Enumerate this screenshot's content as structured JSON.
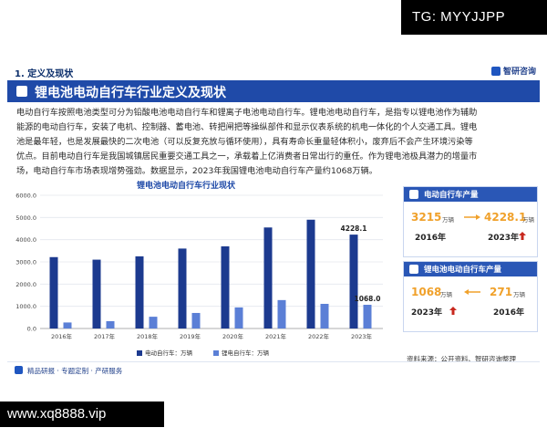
{
  "watermarks": {
    "top_right": "TG: MYYJJPP",
    "bottom_left": "www.xq8888.vip"
  },
  "section": {
    "label": "1. 定义及现状",
    "logo": "智研咨询"
  },
  "title": "锂电池电动自行车行业定义及现状",
  "body_lines": [
    "电动自行车按照电池类型可分为铅酸电池电动自行车和锂离子电池电动自行车。锂电池电动自行车，是指专以锂电池作为辅助",
    "能源的电动自行车，安装了电机、控制器、蓄电池、转把闸把等操纵部件和显示仪表系统的机电一体化的个人交通工具。锂电",
    "池是最年轻，也是发展最快的二次电池（可以反复充放与循环使用），具有寿命长重量轻体积小，废弃后不会产生环境污染等",
    "优点。目前电动自行车是我国城镇居民重要交通工具之一，承载着上亿消费者日常出行的重任。作为锂电池极具潜力的增量市",
    "场，电动自行车市场表现增势强劲。数据显示，2023年我国锂电池电动自行车产量约1068万辆。"
  ],
  "chart_data": {
    "type": "bar",
    "title": "锂电池电动自行车行业现状",
    "categories": [
      "2016年",
      "2017年",
      "2018年",
      "2019年",
      "2020年",
      "2021年",
      "2022年",
      "2023年"
    ],
    "series": [
      {
        "name": "电动自行车：万辆",
        "color": "#1c3a8f",
        "values": [
          3215,
          3100,
          3250,
          3600,
          3700,
          4550,
          4900,
          4228.1
        ]
      },
      {
        "name": "锂电自行车：万辆",
        "color": "#5b7fd6",
        "values": [
          271,
          330,
          530,
          700,
          950,
          1280,
          1110,
          1068.0
        ]
      }
    ],
    "data_labels": {
      "电动自行车：万辆": {
        "2023年": "4228.1"
      },
      "锂电自行车：万辆": {
        "2023年": "1068.0"
      }
    },
    "yticks": [
      "0.0",
      "1000.0",
      "2000.0",
      "3000.0",
      "4000.0",
      "5000.0",
      "6000.0"
    ],
    "ylim": [
      0,
      6000
    ],
    "grid": true,
    "legend": "bottom"
  },
  "cards": [
    {
      "title": "电动自行车产量",
      "left_value": "3215",
      "left_unit": "万辆",
      "left_year": "2016年",
      "right_value": "4228.1",
      "right_unit": "万辆",
      "right_year": "2023年",
      "right_arrow": "up"
    },
    {
      "title": "锂电池电动自行车产量",
      "left_value": "1068",
      "left_unit": "万辆",
      "left_year": "2023年",
      "right_value": "271",
      "right_unit": "万辆",
      "right_year": "2016年",
      "left_arrow": "up"
    }
  ],
  "source": "资料来源：公开资料、智研咨询整理",
  "footer": "精品研报 · 专题定制 · 产研服务",
  "colors": {
    "brand": "#1f4aa8",
    "accent_orange": "#f0a12b",
    "arrow_red": "#c8281e"
  }
}
